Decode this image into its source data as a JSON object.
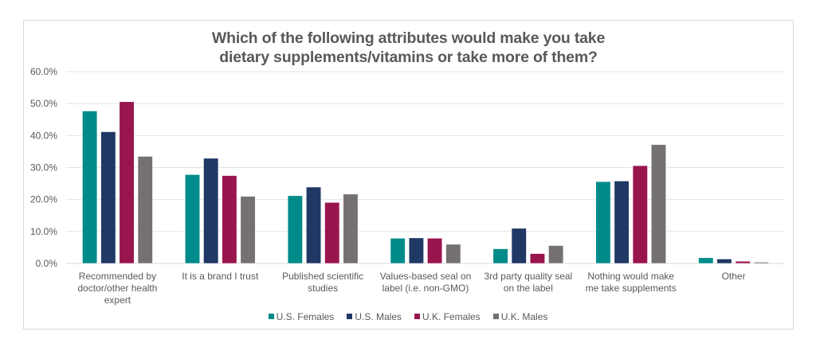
{
  "chart_data": {
    "type": "bar",
    "title_lines": [
      "Which of the following attributes would make you take",
      "dietary supplements/vitamins or take more of them?"
    ],
    "title": "Which of the following attributes would make you take dietary supplements/vitamins or take more of them?",
    "xlabel": "",
    "ylabel": "",
    "ylim": [
      0,
      60
    ],
    "yticks": [
      0,
      10,
      20,
      30,
      40,
      50,
      60
    ],
    "ytick_labels": [
      "0.0%",
      "10.0%",
      "20.0%",
      "30.0%",
      "40.0%",
      "50.0%",
      "60.0%"
    ],
    "grid": true,
    "legend_position": "bottom",
    "categories": [
      "Recommended by doctor/other health expert",
      "It is a brand I trust",
      "Published scientific studies",
      "Values-based seal on label (i.e. non-GMO)",
      "3rd party quality seal on the label",
      "Nothing would make me take supplements",
      "Other"
    ],
    "category_label_lines": [
      [
        "Recommended by",
        "doctor/other health",
        "expert"
      ],
      [
        "It is a brand I trust"
      ],
      [
        "Published scientific",
        "studies"
      ],
      [
        "Values-based seal on",
        "label (i.e. non-GMO)"
      ],
      [
        "3rd party quality seal",
        "on the label"
      ],
      [
        "Nothing would make",
        "me take supplements"
      ],
      [
        "Other"
      ]
    ],
    "series": [
      {
        "name": "U.S. Females",
        "color": "#008B8B",
        "values": [
          47.7,
          27.8,
          21.2,
          7.9,
          4.6,
          25.6,
          1.8
        ]
      },
      {
        "name": "U.S. Males",
        "color": "#1F3864",
        "values": [
          41.2,
          32.9,
          23.9,
          8.0,
          11.0,
          25.8,
          1.4
        ]
      },
      {
        "name": "U.K. Females",
        "color": "#99154E",
        "values": [
          50.6,
          27.5,
          19.1,
          7.9,
          3.1,
          30.6,
          0.7
        ]
      },
      {
        "name": "U.K. Males",
        "color": "#767171",
        "values": [
          33.5,
          21.0,
          21.7,
          6.0,
          5.6,
          37.2,
          0.4
        ]
      }
    ]
  }
}
